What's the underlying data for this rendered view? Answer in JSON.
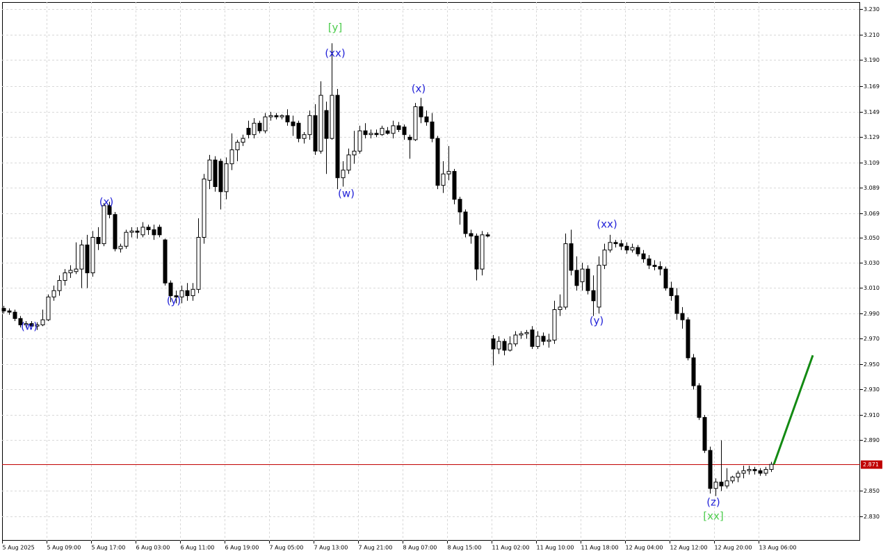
{
  "chart_data": {
    "type": "candlestick",
    "categories": [
      "5 Aug 2025",
      null,
      null,
      null,
      null,
      null,
      null,
      null,
      "5 Aug 09:00",
      null,
      null,
      null,
      null,
      null,
      null,
      null,
      "5 Aug 17:00",
      null,
      null,
      null,
      null,
      null,
      null,
      null,
      "6 Aug 03:00",
      null,
      null,
      null,
      null,
      null,
      null,
      null,
      "6 Aug 11:00",
      null,
      null,
      null,
      null,
      null,
      null,
      null,
      "6 Aug 19:00",
      null,
      null,
      null,
      null,
      null,
      null,
      null,
      "7 Aug 05:00",
      null,
      null,
      null,
      null,
      null,
      null,
      null,
      "7 Aug 13:00",
      null,
      null,
      null,
      null,
      null,
      null,
      null,
      "7 Aug 21:00",
      null,
      null,
      null,
      null,
      null,
      null,
      null,
      "8 Aug 07:00",
      null,
      null,
      null,
      null,
      null,
      null,
      null,
      "8 Aug 15:00",
      null,
      null,
      null,
      null,
      null,
      null,
      null,
      "11 Aug 02:00",
      null,
      null,
      null,
      null,
      null,
      null,
      null,
      "11 Aug 10:00",
      null,
      null,
      null,
      null,
      null,
      null,
      null,
      "11 Aug 18:00",
      null,
      null,
      null,
      null,
      null,
      null,
      null,
      "12 Aug 04:00",
      null,
      null,
      null,
      null,
      null,
      null,
      null,
      "12 Aug 12:00",
      null,
      null,
      null,
      null,
      null,
      null,
      null,
      "12 Aug 20:00",
      null,
      null,
      null,
      null,
      null,
      null,
      null,
      "13 Aug 06:00",
      null,
      null
    ],
    "open": [
      2.994,
      2.992,
      2.991,
      2.986,
      2.981,
      2.982,
      2.98,
      2.981,
      2.985,
      3.003,
      3.008,
      3.016,
      3.022,
      3.023,
      3.025,
      3.044,
      3.022,
      3.05,
      3.045,
      3.075,
      3.068,
      3.041,
      3.043,
      3.054,
      3.055,
      3.052,
      3.058,
      3.056,
      3.058,
      3.048,
      3.014,
      3.004,
      3.003,
      3.008,
      3.004,
      3.009,
      3.05,
      3.095,
      3.111,
      3.11,
      3.086,
      3.108,
      3.119,
      3.125,
      3.136,
      3.131,
      3.14,
      3.134,
      3.145,
      3.146,
      3.145,
      3.146,
      3.141,
      3.14,
      3.128,
      3.131,
      3.146,
      3.118,
      3.15,
      3.128,
      3.162,
      3.097,
      3.103,
      3.115,
      3.118,
      3.134,
      3.131,
      3.132,
      3.131,
      3.134,
      3.132,
      3.138,
      3.137,
      3.129,
      3.127,
      3.153,
      3.145,
      3.141,
      3.128,
      3.091,
      3.1,
      3.102,
      3.08,
      3.07,
      3.053,
      3.051,
      3.025,
      3.052,
      2.97,
      2.962,
      2.968,
      2.961,
      2.966,
      2.973,
      2.974,
      2.977,
      2.964,
      2.972,
      2.968,
      2.969,
      2.993,
      2.995,
      3.045,
      3.024,
      3.015,
      3.025,
      3.008,
      2.995,
      3.028,
      3.04,
      3.046,
      3.045,
      3.043,
      3.04,
      3.042,
      3.037,
      3.033,
      3.028,
      3.027,
      3.025,
      3.01,
      3.004,
      2.99,
      2.985,
      2.955,
      2.933,
      2.908,
      2.882,
      2.852,
      2.857,
      2.854,
      2.858,
      2.861,
      2.864,
      2.866,
      2.867,
      2.866,
      2.864,
      2.867
    ],
    "high": [
      2.996,
      2.994,
      2.993,
      2.988,
      2.984,
      2.984,
      2.983,
      2.993,
      3.005,
      3.012,
      3.02,
      3.025,
      3.028,
      3.046,
      3.048,
      3.052,
      3.055,
      3.058,
      3.077,
      3.078,
      3.07,
      3.045,
      3.056,
      3.058,
      3.058,
      3.062,
      3.06,
      3.06,
      3.06,
      3.049,
      3.016,
      3.008,
      3.012,
      3.014,
      3.014,
      3.065,
      3.1,
      3.115,
      3.114,
      3.112,
      3.113,
      3.132,
      3.127,
      3.131,
      3.142,
      3.144,
      3.142,
      3.148,
      3.149,
      3.148,
      3.147,
      3.151,
      3.146,
      3.142,
      3.133,
      3.15,
      3.155,
      3.173,
      3.157,
      3.203,
      3.167,
      3.11,
      3.12,
      3.134,
      3.138,
      3.14,
      3.135,
      3.135,
      3.138,
      3.137,
      3.142,
      3.141,
      3.139,
      3.131,
      3.156,
      3.16,
      3.15,
      3.148,
      3.13,
      3.11,
      3.122,
      3.104,
      3.082,
      3.072,
      3.056,
      3.053,
      3.055,
      3.054,
      2.973,
      2.972,
      2.97,
      2.972,
      2.976,
      2.976,
      2.977,
      2.98,
      2.976,
      2.975,
      2.974,
      3.0,
      3.005,
      3.053,
      3.056,
      3.035,
      3.03,
      3.028,
      3.02,
      3.035,
      3.045,
      3.052,
      3.048,
      3.048,
      3.046,
      3.045,
      3.044,
      3.04,
      3.036,
      3.032,
      3.031,
      3.027,
      3.015,
      3.01,
      2.995,
      2.987,
      2.958,
      2.935,
      2.91,
      2.885,
      2.86,
      2.89,
      2.868,
      2.862,
      2.866,
      2.87,
      2.87,
      2.869,
      2.868,
      2.869,
      2.873
    ],
    "low": [
      2.99,
      2.989,
      2.984,
      2.979,
      2.979,
      2.978,
      2.977,
      2.98,
      2.984,
      3.0,
      3.004,
      3.012,
      3.018,
      3.021,
      3.01,
      3.01,
      3.019,
      3.04,
      3.043,
      3.065,
      3.039,
      3.038,
      3.041,
      3.05,
      3.049,
      3.05,
      3.052,
      3.048,
      3.05,
      3.012,
      2.999,
      2.998,
      2.998,
      3.0,
      3.0,
      3.006,
      3.045,
      3.088,
      3.086,
      3.072,
      3.08,
      3.103,
      3.11,
      3.122,
      3.128,
      3.128,
      3.132,
      3.132,
      3.142,
      3.143,
      3.143,
      3.138,
      3.13,
      3.125,
      3.124,
      3.127,
      3.115,
      3.116,
      3.1,
      3.127,
      3.088,
      3.09,
      3.1,
      3.108,
      3.116,
      3.128,
      3.128,
      3.129,
      3.13,
      3.131,
      3.128,
      3.133,
      3.127,
      3.112,
      3.126,
      3.14,
      3.138,
      3.125,
      3.088,
      3.085,
      3.095,
      3.076,
      3.06,
      3.05,
      3.045,
      3.016,
      3.02,
      3.05,
      2.949,
      2.958,
      2.957,
      2.96,
      2.964,
      2.97,
      2.97,
      2.962,
      2.962,
      2.965,
      2.963,
      2.966,
      2.988,
      2.993,
      3.02,
      3.008,
      3.008,
      3.005,
      2.988,
      2.99,
      3.025,
      3.038,
      3.042,
      3.04,
      3.037,
      3.038,
      3.035,
      3.03,
      3.025,
      3.024,
      3.02,
      3.008,
      3.0,
      2.985,
      2.978,
      2.953,
      2.93,
      2.906,
      2.88,
      2.848,
      2.846,
      2.85,
      2.852,
      2.856,
      2.857,
      2.86,
      2.863,
      2.863,
      2.862,
      2.862,
      2.865
    ],
    "close": [
      2.992,
      2.991,
      2.986,
      2.981,
      2.982,
      2.98,
      2.981,
      2.985,
      3.003,
      3.008,
      3.016,
      3.022,
      3.024,
      3.025,
      3.044,
      3.022,
      3.05,
      3.045,
      3.075,
      3.068,
      3.041,
      3.043,
      3.054,
      3.055,
      3.054,
      3.058,
      3.056,
      3.052,
      3.052,
      3.014,
      3.004,
      3.003,
      3.008,
      3.004,
      3.009,
      3.05,
      3.096,
      3.111,
      3.09,
      3.086,
      3.108,
      3.119,
      3.125,
      3.128,
      3.131,
      3.14,
      3.134,
      3.145,
      3.146,
      3.145,
      3.146,
      3.141,
      3.138,
      3.128,
      3.131,
      3.146,
      3.118,
      3.162,
      3.128,
      3.162,
      3.097,
      3.103,
      3.115,
      3.118,
      3.134,
      3.131,
      3.132,
      3.131,
      3.136,
      3.132,
      3.138,
      3.135,
      3.131,
      3.127,
      3.153,
      3.145,
      3.141,
      3.128,
      3.091,
      3.1,
      3.102,
      3.08,
      3.07,
      3.053,
      3.051,
      3.025,
      3.052,
      3.051,
      2.962,
      2.968,
      2.961,
      2.966,
      2.973,
      2.974,
      2.975,
      2.964,
      2.972,
      2.968,
      2.969,
      2.993,
      2.995,
      3.045,
      3.024,
      3.012,
      3.025,
      3.008,
      3.0,
      3.028,
      3.04,
      3.046,
      3.045,
      3.043,
      3.04,
      3.042,
      3.037,
      3.033,
      3.028,
      3.027,
      3.025,
      3.01,
      3.004,
      2.99,
      2.985,
      2.955,
      2.933,
      2.908,
      2.882,
      2.852,
      2.857,
      2.854,
      2.858,
      2.861,
      2.864,
      2.866,
      2.867,
      2.866,
      2.864,
      2.867,
      2.871
    ],
    "up_color": "#ffffff",
    "down_color": "#000000",
    "ylim": [
      2.8108,
      3.2355
    ],
    "yticks": [
      {
        "value": 3.23,
        "label": "3.230"
      },
      {
        "value": 3.21,
        "label": "3.210"
      },
      {
        "value": 3.19,
        "label": "3.190"
      },
      3.169,
      3.149,
      3.129,
      3.109,
      3.089,
      3.069,
      {
        "value": 3.05,
        "label": "3.050"
      },
      {
        "value": 3.03,
        "label": "3.030"
      },
      {
        "value": 3.01,
        "label": "3.010"
      },
      {
        "value": 2.99,
        "label": "2.990"
      },
      {
        "value": 2.97,
        "label": "2.970"
      },
      {
        "value": 2.95,
        "label": "2.950"
      },
      {
        "value": 2.93,
        "label": "2.930"
      },
      {
        "value": 2.91,
        "label": "2.910"
      },
      {
        "value": 2.89,
        "label": "2.890"
      },
      {
        "value": 2.85,
        "label": "2.850"
      },
      {
        "value": 2.83,
        "label": "2.830"
      }
    ],
    "grid": true,
    "price_line": {
      "value": 2.871,
      "color": "#c00000"
    },
    "forecast": {
      "x": [
        138,
        145
      ],
      "values": [
        2.871,
        2.957
      ],
      "color": "#138a13"
    },
    "annotations": [
      {
        "text": "(w)",
        "color": "#2424d8"
      },
      {
        "text": "(x)",
        "color": "#2424d8"
      },
      {
        "text": "(y)",
        "color": "#2424d8"
      },
      {
        "text": "[y]",
        "color": "#4ccc4c"
      },
      {
        "text": "(xx)",
        "color": "#2424d8"
      },
      {
        "text": "(w)",
        "color": "#2424d8"
      },
      {
        "text": "(x)",
        "color": "#2424d8"
      },
      {
        "text": "(xx)",
        "color": "#2424d8"
      },
      {
        "text": "(y)",
        "color": "#2424d8"
      },
      {
        "text": "(z)",
        "color": "#2424d8"
      },
      {
        "text": "[xx]",
        "color": "#4ccc4c"
      }
    ]
  }
}
